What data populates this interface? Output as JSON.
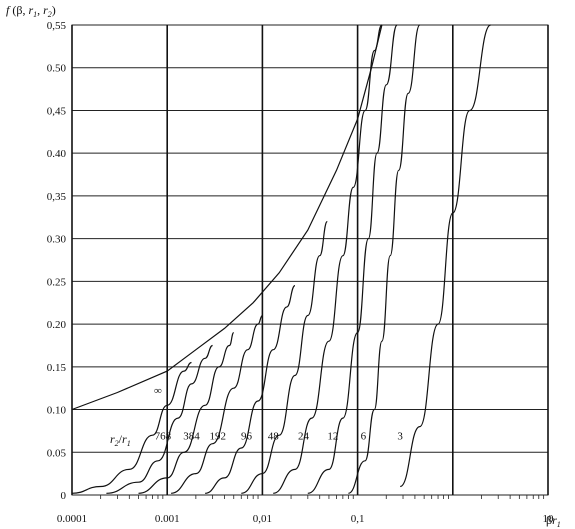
{
  "chart_data": {
    "type": "line",
    "ylabel_parts": {
      "f": "f",
      "open": " (β, ",
      "r1": "r",
      "r1sub": "1",
      "sep": ", ",
      "r2": "r",
      "r2sub": "2",
      "close": ")"
    },
    "xlabel_parts": {
      "beta": "β",
      "r": "r",
      "sub": "1"
    },
    "param_label_parts": {
      "r2": "r",
      "r2sub": "2",
      "slash": "/",
      "r1": "r",
      "r1sub": "1"
    },
    "xscale": "log",
    "xlim": [
      0.0001,
      10
    ],
    "ylim": [
      0,
      0.55
    ],
    "grid": true,
    "y_ticks": [
      {
        "value": 0,
        "label": "0"
      },
      {
        "value": 0.05,
        "label": "0.05"
      },
      {
        "value": 0.1,
        "label": "0.10"
      },
      {
        "value": 0.15,
        "label": "0.15"
      },
      {
        "value": 0.2,
        "label": "0.20"
      },
      {
        "value": 0.25,
        "label": "0.25"
      },
      {
        "value": 0.3,
        "label": "0.30"
      },
      {
        "value": 0.35,
        "label": "0,35"
      },
      {
        "value": 0.4,
        "label": "0.40"
      },
      {
        "value": 0.45,
        "label": "0,45"
      },
      {
        "value": 0.5,
        "label": "0.50"
      },
      {
        "value": 0.55,
        "label": "0,55"
      }
    ],
    "x_ticks": [
      {
        "value": 0.0001,
        "label": "0.0001"
      },
      {
        "value": 0.001,
        "label": "0.001"
      },
      {
        "value": 0.01,
        "label": "0,01"
      },
      {
        "value": 0.1,
        "label": "0,1"
      },
      {
        "value": 10,
        "label": "10"
      }
    ],
    "envelope": {
      "label": "∞",
      "points": [
        [
          0.0001,
          0.1
        ],
        [
          0.0003,
          0.12
        ],
        [
          0.001,
          0.145
        ],
        [
          0.002,
          0.17
        ],
        [
          0.004,
          0.195
        ],
        [
          0.008,
          0.225
        ],
        [
          0.015,
          0.26
        ],
        [
          0.03,
          0.31
        ],
        [
          0.06,
          0.38
        ],
        [
          0.1,
          0.44
        ],
        [
          0.14,
          0.5
        ],
        [
          0.18,
          0.55
        ]
      ]
    },
    "series": [
      {
        "name": "768",
        "points": [
          [
            0.0001,
            0.002
          ],
          [
            0.0002,
            0.01
          ],
          [
            0.0004,
            0.03
          ],
          [
            0.0007,
            0.07
          ],
          [
            0.001,
            0.105
          ],
          [
            0.0015,
            0.145
          ],
          [
            0.0018,
            0.155
          ]
        ]
      },
      {
        "name": "384",
        "points": [
          [
            0.00023,
            0.002
          ],
          [
            0.0005,
            0.015
          ],
          [
            0.0008,
            0.04
          ],
          [
            0.0013,
            0.09
          ],
          [
            0.0018,
            0.13
          ],
          [
            0.0025,
            0.16
          ],
          [
            0.003,
            0.175
          ]
        ]
      },
      {
        "name": "192",
        "points": [
          [
            0.0005,
            0.002
          ],
          [
            0.001,
            0.02
          ],
          [
            0.0015,
            0.05
          ],
          [
            0.0025,
            0.105
          ],
          [
            0.0035,
            0.15
          ],
          [
            0.0045,
            0.175
          ],
          [
            0.005,
            0.19
          ]
        ]
      },
      {
        "name": "96",
        "points": [
          [
            0.0011,
            0.002
          ],
          [
            0.002,
            0.025
          ],
          [
            0.003,
            0.06
          ],
          [
            0.005,
            0.125
          ],
          [
            0.007,
            0.17
          ],
          [
            0.009,
            0.2
          ],
          [
            0.01,
            0.21
          ]
        ]
      },
      {
        "name": "48",
        "points": [
          [
            0.0025,
            0.002
          ],
          [
            0.004,
            0.02
          ],
          [
            0.006,
            0.055
          ],
          [
            0.009,
            0.11
          ],
          [
            0.013,
            0.17
          ],
          [
            0.018,
            0.22
          ],
          [
            0.022,
            0.245
          ]
        ]
      },
      {
        "name": "24",
        "points": [
          [
            0.006,
            0.002
          ],
          [
            0.01,
            0.025
          ],
          [
            0.015,
            0.07
          ],
          [
            0.022,
            0.14
          ],
          [
            0.03,
            0.21
          ],
          [
            0.04,
            0.28
          ],
          [
            0.048,
            0.32
          ]
        ]
      },
      {
        "name": "12",
        "points": [
          [
            0.013,
            0.002
          ],
          [
            0.022,
            0.03
          ],
          [
            0.033,
            0.09
          ],
          [
            0.05,
            0.18
          ],
          [
            0.07,
            0.28
          ],
          [
            0.09,
            0.36
          ],
          [
            0.12,
            0.45
          ],
          [
            0.15,
            0.52
          ],
          [
            0.18,
            0.55
          ]
        ]
      },
      {
        "name": "6",
        "points": [
          [
            0.03,
            0.002
          ],
          [
            0.05,
            0.03
          ],
          [
            0.07,
            0.09
          ],
          [
            0.1,
            0.19
          ],
          [
            0.13,
            0.3
          ],
          [
            0.16,
            0.4
          ],
          [
            0.2,
            0.48
          ],
          [
            0.26,
            0.55
          ]
        ]
      },
      {
        "name": "3",
        "points": [
          [
            0.08,
            0.002
          ],
          [
            0.12,
            0.04
          ],
          [
            0.15,
            0.1
          ],
          [
            0.18,
            0.18
          ],
          [
            0.22,
            0.28
          ],
          [
            0.27,
            0.38
          ],
          [
            0.34,
            0.47
          ],
          [
            0.45,
            0.55
          ]
        ]
      }
    ],
    "extra_curves": [
      {
        "points": [
          [
            0.28,
            0.01
          ],
          [
            0.45,
            0.08
          ],
          [
            0.7,
            0.2
          ],
          [
            1.0,
            0.33
          ],
          [
            1.5,
            0.45
          ],
          [
            2.5,
            0.55
          ]
        ]
      }
    ]
  }
}
